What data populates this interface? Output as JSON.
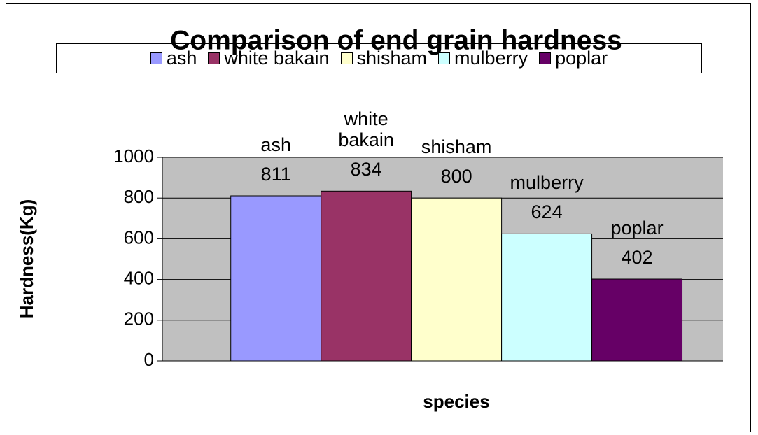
{
  "chart_data": {
    "type": "bar",
    "title": "Comparison of end grain hardness",
    "y_label": "Hardness(Kg)",
    "x_label": "species",
    "categories": [
      null
    ],
    "series": [
      {
        "name": "ash",
        "color": "#9999ff",
        "values": [
          811
        ]
      },
      {
        "name": "white bakain",
        "color": "#993366",
        "values": [
          834
        ]
      },
      {
        "name": "shisham",
        "color": "#ffffcc",
        "values": [
          800
        ]
      },
      {
        "name": "mulberry",
        "color": "#ccffff",
        "values": [
          624
        ]
      },
      {
        "name": "poplar",
        "color": "#660066",
        "values": [
          402
        ]
      }
    ],
    "ylim": [
      0,
      1000
    ],
    "yticks": [
      0,
      200,
      400,
      600,
      800,
      1000
    ],
    "grid": true,
    "legend": "top",
    "plot_background": "#c0c0c0"
  }
}
